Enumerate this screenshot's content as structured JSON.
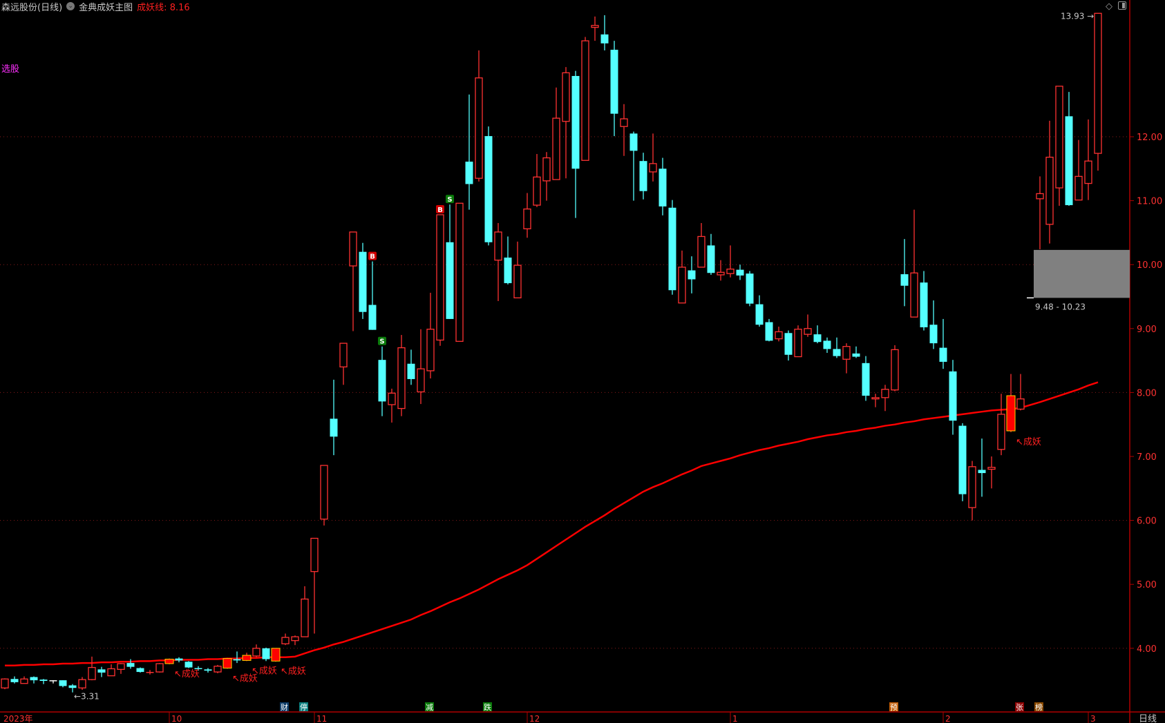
{
  "header": {
    "stock_title": "森远股份(日线)",
    "indicator_name": "金典成妖主图",
    "indicator_label": "成妖线:",
    "indicator_value": "8.16",
    "screener_label": "选股",
    "icons": [
      "chevron-down-circle-icon",
      "diamond-icon",
      "panel-toggle-icon"
    ]
  },
  "colors": {
    "up": "#ff3232",
    "down": "#54ffff",
    "ma_line": "#ff0000",
    "axis": "#b00000",
    "grid": "#8b1a1a",
    "text_gray": "#c8c8c8",
    "flag_fill": "#ff0000",
    "flag_border": "#ffd700"
  },
  "period_label": "日线",
  "chart_data": {
    "type": "candlestick",
    "title": "",
    "y_ticks": [
      "12.00",
      "11.00",
      "10.00",
      "9.00",
      "8.00",
      "7.00",
      "6.00",
      "5.00",
      "4.00"
    ],
    "ylim": [
      3.2,
      14.0
    ],
    "grid": "dotted horizontal at 4, 6, 8, 10, 12",
    "x_labels": [
      {
        "label": "2023年",
        "index": 0
      },
      {
        "label": "10",
        "index": 17
      },
      {
        "label": "11",
        "index": 32
      },
      {
        "label": "12",
        "index": 54
      },
      {
        "label": "1",
        "index": 75
      },
      {
        "label": "2",
        "index": 97
      },
      {
        "label": "3",
        "index": 111
      }
    ],
    "ohlc_fields": [
      "open",
      "high",
      "low",
      "close"
    ],
    "candles": [
      [
        3.38,
        3.53,
        3.36,
        3.52
      ],
      [
        3.52,
        3.56,
        3.45,
        3.47
      ],
      [
        3.45,
        3.56,
        3.45,
        3.52
      ],
      [
        3.55,
        3.56,
        3.45,
        3.5
      ],
      [
        3.51,
        3.52,
        3.44,
        3.49
      ],
      [
        3.5,
        3.5,
        3.45,
        3.5
      ],
      [
        3.5,
        3.5,
        3.39,
        3.41
      ],
      [
        3.42,
        3.44,
        3.31,
        3.38
      ],
      [
        3.38,
        3.55,
        3.35,
        3.51
      ],
      [
        3.51,
        3.87,
        3.5,
        3.7
      ],
      [
        3.67,
        3.71,
        3.55,
        3.62
      ],
      [
        3.57,
        3.75,
        3.57,
        3.68
      ],
      [
        3.67,
        3.77,
        3.6,
        3.76
      ],
      [
        3.77,
        3.83,
        3.68,
        3.71
      ],
      [
        3.69,
        3.7,
        3.62,
        3.63
      ],
      [
        3.63,
        3.66,
        3.59,
        3.63
      ],
      [
        3.63,
        3.77,
        3.62,
        3.76
      ],
      [
        3.76,
        3.84,
        3.75,
        3.83
      ],
      [
        3.84,
        3.86,
        3.78,
        3.81
      ],
      [
        3.79,
        3.8,
        3.69,
        3.7
      ],
      [
        3.69,
        3.72,
        3.65,
        3.69
      ],
      [
        3.67,
        3.69,
        3.62,
        3.65
      ],
      [
        3.63,
        3.74,
        3.61,
        3.72
      ],
      [
        3.69,
        3.85,
        3.68,
        3.84
      ],
      [
        3.83,
        3.95,
        3.77,
        3.81
      ],
      [
        3.81,
        3.93,
        3.8,
        3.89
      ],
      [
        3.88,
        4.06,
        3.86,
        4.0
      ],
      [
        4.0,
        4.01,
        3.8,
        3.83
      ],
      [
        3.8,
        4.0,
        3.79,
        4.0
      ],
      [
        4.07,
        4.23,
        4.05,
        4.17
      ],
      [
        4.12,
        4.2,
        4.05,
        4.18
      ],
      [
        4.18,
        4.97,
        4.18,
        4.77
      ],
      [
        5.2,
        5.72,
        4.23,
        5.72
      ],
      [
        6.02,
        6.86,
        5.92,
        6.86
      ],
      [
        7.59,
        8.2,
        7.02,
        7.31
      ],
      [
        8.4,
        8.77,
        8.12,
        8.77
      ],
      [
        9.98,
        10.51,
        8.96,
        10.51
      ],
      [
        10.2,
        10.34,
        9.15,
        9.26
      ],
      [
        9.37,
        10.05,
        8.98,
        8.98
      ],
      [
        8.51,
        8.72,
        7.63,
        7.86
      ],
      [
        7.81,
        8.06,
        7.53,
        7.99
      ],
      [
        7.75,
        8.9,
        7.63,
        8.7
      ],
      [
        8.45,
        8.67,
        8.12,
        8.21
      ],
      [
        8.01,
        8.99,
        7.82,
        8.37
      ],
      [
        8.34,
        9.56,
        8.22,
        8.99
      ],
      [
        8.82,
        10.78,
        8.73,
        10.78
      ],
      [
        10.35,
        10.94,
        9.15,
        9.15
      ],
      [
        8.8,
        10.96,
        8.8,
        10.96
      ],
      [
        11.61,
        12.66,
        10.86,
        11.26
      ],
      [
        11.35,
        13.35,
        11.3,
        12.92
      ],
      [
        12.01,
        12.16,
        10.3,
        10.35
      ],
      [
        10.07,
        10.65,
        9.43,
        10.51
      ],
      [
        10.11,
        10.44,
        9.69,
        9.71
      ],
      [
        9.48,
        10.36,
        9.48,
        9.99
      ],
      [
        10.56,
        11.12,
        10.42,
        10.87
      ],
      [
        10.93,
        11.73,
        10.9,
        11.37
      ],
      [
        11.31,
        11.76,
        11.0,
        11.67
      ],
      [
        11.33,
        12.77,
        11.33,
        12.29
      ],
      [
        12.24,
        13.09,
        11.35,
        13.0
      ],
      [
        12.95,
        13.03,
        10.73,
        11.5
      ],
      [
        11.63,
        13.56,
        11.63,
        13.5
      ],
      [
        13.71,
        13.88,
        13.5,
        13.74
      ],
      [
        13.6,
        13.9,
        13.35,
        13.46
      ],
      [
        13.36,
        13.5,
        12.01,
        12.36
      ],
      [
        12.16,
        12.51,
        11.7,
        12.28
      ],
      [
        12.05,
        12.08,
        11.0,
        11.78
      ],
      [
        11.62,
        11.75,
        11.02,
        11.15
      ],
      [
        11.45,
        12.05,
        11.3,
        11.58
      ],
      [
        11.5,
        11.67,
        10.77,
        10.91
      ],
      [
        10.89,
        11.01,
        9.53,
        9.6
      ],
      [
        9.4,
        10.22,
        9.4,
        9.96
      ],
      [
        9.91,
        10.13,
        9.55,
        9.77
      ],
      [
        9.96,
        10.65,
        9.96,
        10.44
      ],
      [
        10.3,
        10.48,
        9.84,
        9.87
      ],
      [
        9.84,
        10.07,
        9.75,
        9.88
      ],
      [
        9.86,
        10.3,
        9.8,
        9.93
      ],
      [
        9.92,
        10.0,
        9.76,
        9.83
      ],
      [
        9.86,
        9.9,
        9.35,
        9.39
      ],
      [
        9.38,
        9.52,
        9.03,
        9.06
      ],
      [
        9.1,
        9.15,
        8.8,
        8.81
      ],
      [
        8.84,
        9.03,
        8.8,
        8.95
      ],
      [
        8.93,
        8.97,
        8.5,
        8.59
      ],
      [
        8.56,
        9.05,
        8.56,
        8.99
      ],
      [
        8.91,
        9.22,
        8.87,
        9.0
      ],
      [
        8.91,
        9.05,
        8.77,
        8.79
      ],
      [
        8.81,
        8.86,
        8.62,
        8.68
      ],
      [
        8.68,
        8.86,
        8.54,
        8.57
      ],
      [
        8.52,
        8.77,
        8.3,
        8.72
      ],
      [
        8.61,
        8.72,
        8.54,
        8.56
      ],
      [
        8.46,
        8.57,
        7.87,
        7.95
      ],
      [
        7.9,
        7.98,
        7.77,
        7.92
      ],
      [
        7.92,
        8.12,
        7.71,
        8.05
      ],
      [
        8.04,
        8.74,
        8.02,
        8.67
      ],
      [
        9.85,
        10.4,
        9.35,
        9.67
      ],
      [
        9.18,
        10.86,
        9.18,
        9.87
      ],
      [
        9.72,
        9.9,
        8.97,
        9.02
      ],
      [
        9.06,
        9.44,
        8.68,
        8.77
      ],
      [
        8.7,
        9.15,
        8.37,
        8.48
      ],
      [
        8.33,
        8.51,
        7.34,
        7.56
      ],
      [
        7.48,
        7.52,
        6.3,
        6.41
      ],
      [
        6.2,
        6.93,
        6.0,
        6.84
      ],
      [
        6.79,
        7.28,
        6.37,
        6.74
      ],
      [
        6.8,
        7.0,
        6.5,
        6.83
      ],
      [
        7.11,
        7.98,
        7.02,
        7.66
      ],
      [
        7.4,
        8.29,
        7.38,
        7.95
      ],
      [
        7.74,
        8.29,
        7.72,
        7.9
      ],
      [
        11.03,
        11.38,
        10.24,
        11.11
      ],
      [
        10.63,
        12.25,
        10.33,
        11.68
      ],
      [
        11.2,
        12.79,
        10.92,
        12.79
      ],
      [
        12.32,
        12.7,
        10.92,
        10.93
      ],
      [
        11.01,
        11.95,
        11.01,
        11.38
      ],
      [
        11.27,
        12.27,
        11.01,
        11.62
      ],
      [
        11.74,
        13.93,
        11.47,
        13.93
      ]
    ],
    "ma_line": {
      "name": "成妖线",
      "values": [
        3.73,
        3.73,
        3.74,
        3.74,
        3.75,
        3.75,
        3.76,
        3.76,
        3.77,
        3.77,
        3.78,
        3.78,
        3.79,
        3.79,
        3.8,
        3.8,
        3.81,
        3.81,
        3.82,
        3.82,
        3.82,
        3.83,
        3.83,
        3.84,
        3.84,
        3.85,
        3.85,
        3.86,
        3.86,
        3.86,
        3.87,
        3.92,
        3.97,
        4.01,
        4.06,
        4.1,
        4.15,
        4.2,
        4.25,
        4.3,
        4.35,
        4.4,
        4.45,
        4.52,
        4.58,
        4.65,
        4.72,
        4.78,
        4.85,
        4.92,
        5.0,
        5.08,
        5.15,
        5.22,
        5.3,
        5.4,
        5.5,
        5.6,
        5.7,
        5.8,
        5.9,
        5.99,
        6.08,
        6.18,
        6.27,
        6.36,
        6.45,
        6.52,
        6.58,
        6.65,
        6.72,
        6.78,
        6.85,
        6.89,
        6.93,
        6.97,
        7.02,
        7.06,
        7.1,
        7.13,
        7.17,
        7.2,
        7.23,
        7.27,
        7.3,
        7.33,
        7.35,
        7.38,
        7.4,
        7.43,
        7.45,
        7.48,
        7.5,
        7.53,
        7.55,
        7.58,
        7.6,
        7.62,
        7.64,
        7.66,
        7.68,
        7.7,
        7.72,
        7.73,
        7.74,
        7.76,
        7.85,
        7.9,
        7.95,
        8.0,
        8.05,
        8.11,
        8.16
      ]
    },
    "flagged_candles": [
      17,
      23,
      25,
      28,
      104
    ],
    "flag_label": "↖成妖",
    "signals": [
      {
        "index": 38,
        "label": "B",
        "color": "#d00000"
      },
      {
        "index": 39,
        "label": "S",
        "color": "#0a7a0a"
      },
      {
        "index": 45,
        "label": "B",
        "color": "#d00000"
      },
      {
        "index": 46,
        "label": "S",
        "color": "#0a7a0a"
      }
    ],
    "low_annotation": {
      "index": 7,
      "label": "3.31",
      "arrow": "←"
    },
    "high_annotation": {
      "index": 112,
      "label": "13.93"
    },
    "zone": {
      "low": 9.48,
      "high": 10.23,
      "label": "9.48 - 10.23",
      "start_index": 106,
      "color": "#808080"
    },
    "event_tags": [
      {
        "index": 29,
        "label": "财",
        "color": "#0b3a66"
      },
      {
        "index": 31,
        "label": "停",
        "color": "#0a8080"
      },
      {
        "index": 44,
        "label": "减",
        "color": "#0a7a0a"
      },
      {
        "index": 50,
        "label": "跌",
        "color": "#0a7a0a"
      },
      {
        "index": 92,
        "label": "预",
        "color": "#c05a00"
      },
      {
        "index": 105,
        "label": "张",
        "color": "#8b0000"
      },
      {
        "index": 106,
        "label": "榜",
        "color": "#8b4a00"
      }
    ]
  }
}
